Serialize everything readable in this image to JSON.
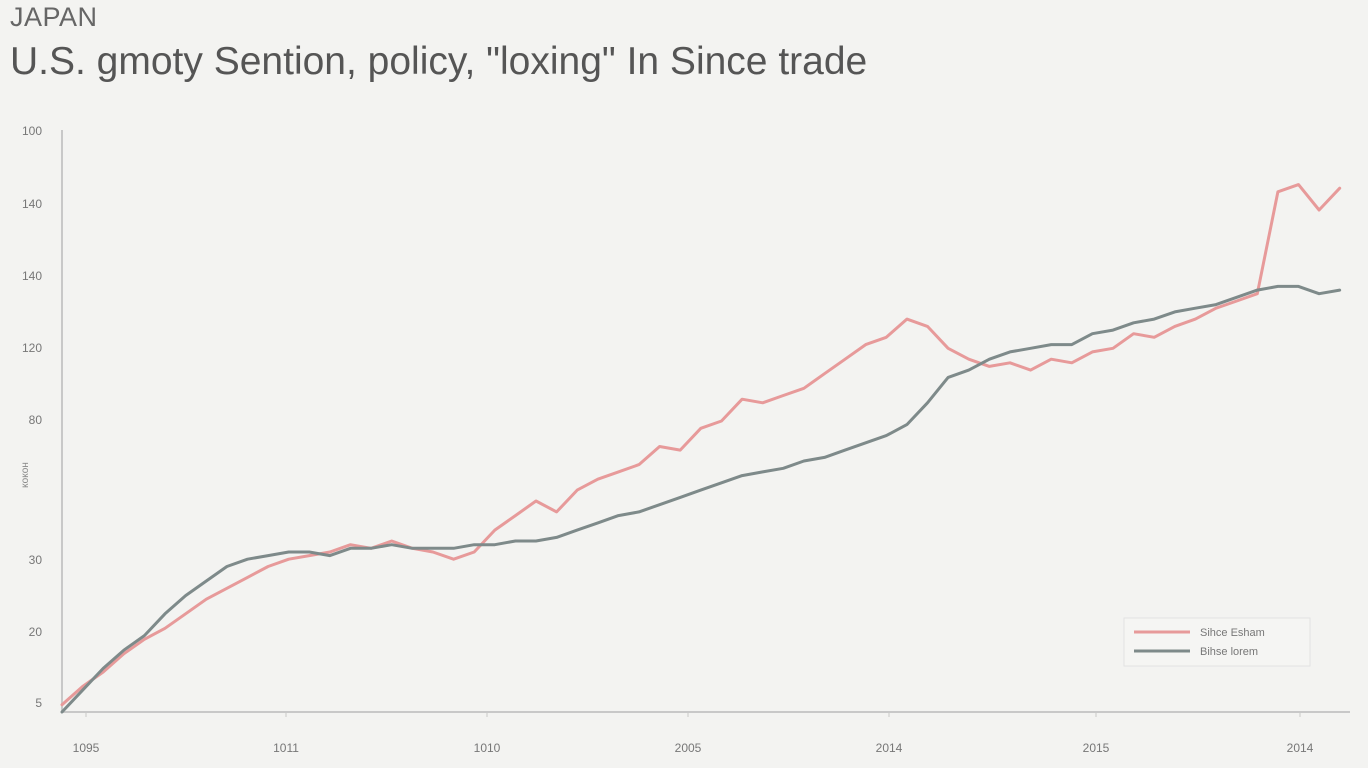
{
  "header": {
    "kicker": "JAPAN",
    "title": "U.S. gmoty Sention, policy, \"loxing\" In Since trade"
  },
  "colors": {
    "background": "#f3f3f1",
    "series_red": "#e79a9a",
    "series_gray": "#7e8a8a",
    "axis": "#c8c8c8"
  },
  "chart_data": {
    "type": "line",
    "title": "U.S. gmoty Sention, policy, \"loxing\" In Since trade",
    "ylabel": "кокон",
    "xlabel": "",
    "grid": false,
    "legend_position": "bottom-right",
    "x_ticks": [
      "1095",
      "1011",
      "1010",
      "2005",
      "2014",
      "2015",
      "2014"
    ],
    "y_ticks": [
      "5",
      "20",
      "30",
      "",
      "80",
      "120",
      "140",
      "140",
      "100"
    ],
    "ylim": [
      0,
      160
    ],
    "xlim": [
      0,
      125
    ],
    "series": [
      {
        "name": "Sihce Esham",
        "color": "#e79a9a",
        "x": [
          0,
          2,
          4,
          6,
          8,
          10,
          12,
          14,
          16,
          18,
          20,
          22,
          24,
          26,
          28,
          30,
          32,
          34,
          36,
          38,
          40,
          42,
          44,
          46,
          48,
          50,
          52,
          54,
          56,
          58,
          60,
          62,
          64,
          66,
          68,
          70,
          72,
          74,
          76,
          78,
          80,
          82,
          84,
          86,
          88,
          90,
          92,
          94,
          96,
          98,
          100,
          102,
          104,
          106,
          108,
          110,
          112,
          114,
          116,
          118,
          120,
          122,
          124
        ],
        "y": [
          2,
          7,
          11,
          16,
          20,
          23,
          27,
          31,
          34,
          37,
          40,
          42,
          43,
          44,
          46,
          45,
          47,
          45,
          44,
          42,
          44,
          50,
          54,
          58,
          55,
          61,
          64,
          66,
          68,
          73,
          72,
          78,
          80,
          86,
          85,
          87,
          89,
          93,
          97,
          101,
          103,
          108,
          106,
          100,
          97,
          95,
          96,
          94,
          97,
          96,
          99,
          100,
          104,
          103,
          106,
          108,
          111,
          113,
          115,
          143,
          145,
          138,
          144
        ]
      },
      {
        "name": "Bihse lorem",
        "color": "#7e8a8a",
        "x": [
          0,
          2,
          4,
          6,
          8,
          10,
          12,
          14,
          16,
          18,
          20,
          22,
          24,
          26,
          28,
          30,
          32,
          34,
          36,
          38,
          40,
          42,
          44,
          46,
          48,
          50,
          52,
          54,
          56,
          58,
          60,
          62,
          64,
          66,
          68,
          70,
          72,
          74,
          76,
          78,
          80,
          82,
          84,
          86,
          88,
          90,
          92,
          94,
          96,
          98,
          100,
          102,
          104,
          106,
          108,
          110,
          112,
          114,
          116,
          118,
          120,
          122,
          124
        ],
        "y": [
          0,
          6,
          12,
          17,
          21,
          27,
          32,
          36,
          40,
          42,
          43,
          44,
          44,
          43,
          45,
          45,
          46,
          45,
          45,
          45,
          46,
          46,
          47,
          47,
          48,
          50,
          52,
          54,
          55,
          57,
          59,
          61,
          63,
          65,
          66,
          67,
          69,
          70,
          72,
          74,
          76,
          79,
          85,
          92,
          94,
          97,
          99,
          100,
          101,
          101,
          104,
          105,
          107,
          108,
          110,
          111,
          112,
          114,
          116,
          117,
          117,
          115,
          116
        ]
      }
    ]
  }
}
